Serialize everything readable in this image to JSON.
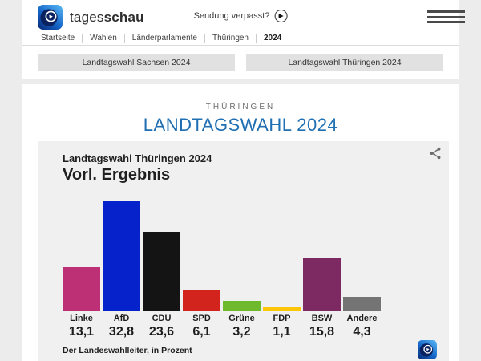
{
  "header": {
    "brand": {
      "regular": "tages",
      "bold": "schau"
    },
    "watch_link": "Sendung verpasst?",
    "breadcrumb": [
      "Startseite",
      "Wahlen",
      "Länderparlamente",
      "Thüringen",
      "2024"
    ]
  },
  "tabs": [
    {
      "label": "Landtagswahl Sachsen 2024"
    },
    {
      "label": "Landtagswahl Thüringen 2024"
    }
  ],
  "page": {
    "kicker": "THÜRINGEN",
    "title": "LANDTAGSWAHL 2024",
    "title_color": "#1f6fb2"
  },
  "chart_data": {
    "type": "bar",
    "title": "Landtagswahl Thüringen 2024",
    "subtitle": "Vorl. Ergebnis",
    "categories": [
      "Linke",
      "AfD",
      "CDU",
      "SPD",
      "Grüne",
      "FDP",
      "BSW",
      "Andere"
    ],
    "values": [
      13.1,
      32.8,
      23.6,
      6.1,
      3.2,
      1.1,
      15.8,
      4.3
    ],
    "value_labels": [
      "13,1",
      "32,8",
      "23,6",
      "6,1",
      "3,2",
      "1,1",
      "15,8",
      "4,3"
    ],
    "colors": [
      "#bd3075",
      "#0622ca",
      "#141414",
      "#d3231d",
      "#6eba2c",
      "#fdc609",
      "#7d2a62",
      "#747474"
    ],
    "ylim": [
      0,
      32.8
    ],
    "unit": "Prozent",
    "source": "Der Landeswahlleiter, in Prozent",
    "legend": "none",
    "grid": "off"
  },
  "icons": {
    "play": "play-icon",
    "menu": "hamburger-menu-icon",
    "share": "share-icon",
    "logo": "tagesschau-globe-logo"
  }
}
